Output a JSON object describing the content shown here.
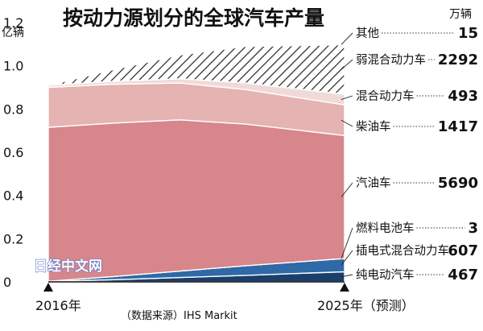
{
  "chart_data": {
    "type": "area",
    "stacked": true,
    "title": "按动力源划分的全球汽车产量",
    "ylabel": "亿辆",
    "unit_right": "万辆",
    "ylim": [
      0,
      1.2
    ],
    "yticks": [
      "0",
      "0.2",
      "0.4",
      "0.6",
      "0.8",
      "1.0",
      "1.2"
    ],
    "yticks_values": [
      0,
      0.2,
      0.4,
      0.6,
      0.8,
      1.0,
      1.2
    ],
    "x": [
      2016,
      2018,
      2020,
      2022,
      2025
    ],
    "xlabels": [
      "2016年",
      "2025年（预测）"
    ],
    "source": "（数据来源）IHS Markit",
    "grid": false,
    "series": [
      {
        "name": "纯电动汽车",
        "label_value": "467",
        "color": "#1b3f6c",
        "values": [
          0.002,
          0.01,
          0.02,
          0.03,
          0.047
        ]
      },
      {
        "name": "插电式混合动力车",
        "label_value": "607",
        "color": "#2f69a6",
        "values": [
          0.001,
          0.015,
          0.03,
          0.045,
          0.061
        ]
      },
      {
        "name": "燃料电池车",
        "label_value": "3",
        "color": "#a8c2dc",
        "values": [
          0.0,
          0.0,
          0.0,
          0.0,
          0.0003
        ]
      },
      {
        "name": "汽油车",
        "label_value": "5690",
        "color": "#d7868b",
        "values": [
          0.712,
          0.71,
          0.7,
          0.655,
          0.569
        ]
      },
      {
        "name": "柴油车",
        "label_value": "1417",
        "color": "#e4b3b2",
        "values": [
          0.185,
          0.18,
          0.17,
          0.16,
          0.142
        ]
      },
      {
        "name": "混合动力车",
        "label_value": "493",
        "color": "#f0dad8",
        "values": [
          0.01,
          0.013,
          0.02,
          0.03,
          0.049
        ]
      },
      {
        "name": "弱混合动力车",
        "label_value": "2292",
        "color": "hatch",
        "values": [
          0.0,
          0.055,
          0.11,
          0.17,
          0.229
        ]
      },
      {
        "name": "其他",
        "label_value": "15",
        "color": "#ffffff",
        "values": [
          0.0,
          0.0005,
          0.001,
          0.0012,
          0.0015
        ]
      }
    ]
  },
  "watermark": "日经中文网"
}
